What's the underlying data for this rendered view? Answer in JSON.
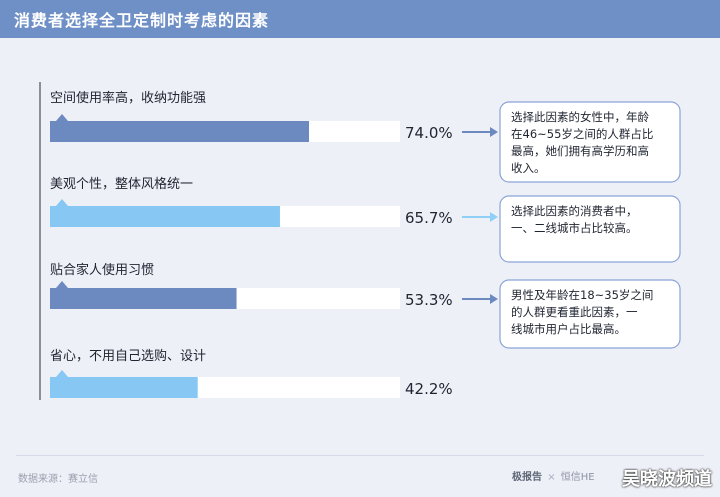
{
  "title": "消费者选择全卫定制时考虑的因素",
  "colors": {
    "header": "#6f90c6",
    "bar_dark": "#6c89c0",
    "bar_light": "#86c7f3",
    "bar_track": "#ffffff",
    "note_border": "#8ba3d6",
    "arrow_dark": "#6c89c0",
    "arrow_light": "#8fd0f7",
    "background": "#eef0f8"
  },
  "chart_data": {
    "type": "bar",
    "orientation": "horizontal",
    "xlim": [
      0,
      100
    ],
    "categories": [
      "空间使用率高，收纳功能强",
      "美观个性，整体风格统一",
      "贴合家人使用习惯",
      "省心，不用自己选购、设计"
    ],
    "values": [
      74.0,
      65.7,
      53.3,
      42.2
    ],
    "value_labels": [
      "74.0%",
      "65.7%",
      "53.3%",
      "42.2%"
    ],
    "bar_colors": [
      "#6c89c0",
      "#86c7f3",
      "#6c89c0",
      "#86c7f3"
    ],
    "annotations": [
      {
        "category_index": 0,
        "lines": [
          "选择此因素的女性中，年龄",
          "在46~55岁之间的人群占比",
          "最高，她们拥有高学历和高",
          "收入。"
        ],
        "arrow_color": "#6c89c0"
      },
      {
        "category_index": 1,
        "lines": [
          "选择此因素的消费者中，",
          "一、二线城市占比较高。"
        ],
        "arrow_color": "#8fd0f7"
      },
      {
        "category_index": 2,
        "lines": [
          "男性及年龄在18~35岁之间",
          "的人群更看重此因素，一",
          "线城市用户占比最高。"
        ],
        "arrow_color": "#6c89c0"
      }
    ]
  },
  "footer": {
    "source": "数据来源：赛立信",
    "brand_1": "极报告",
    "brand_sep": "×",
    "brand_2": "恒信HE"
  },
  "watermark": "吴晓波频道"
}
